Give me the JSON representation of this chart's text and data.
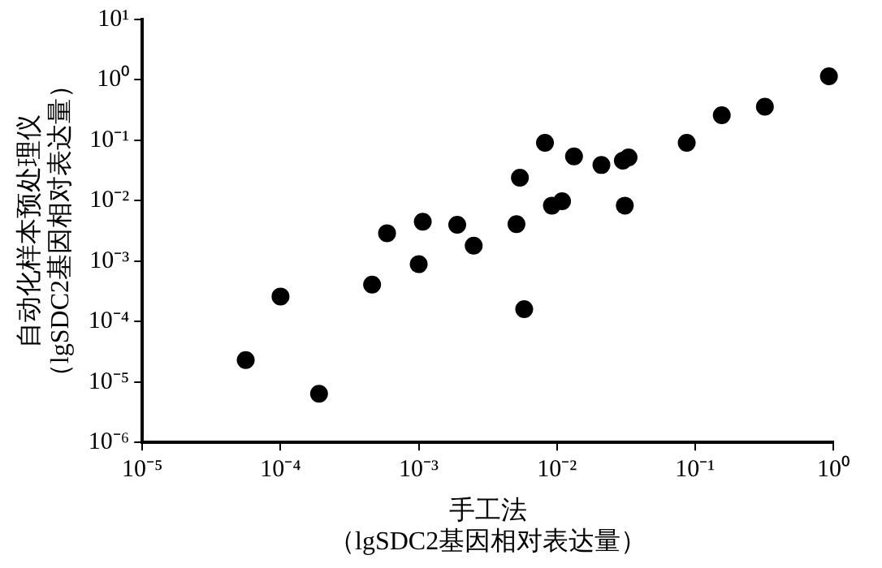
{
  "chart_data": {
    "type": "scatter",
    "xlabel": "手工法（lgSDC2基因相对表达量）",
    "ylabel": "自动化样本预处理仪（lgSDC2基因相对表达量）",
    "x": [
      5.6e-05,
      0.0001,
      0.00019,
      0.00046,
      0.00059,
      0.001,
      0.00107,
      0.0019,
      0.0025,
      0.0051,
      0.0054,
      0.0058,
      0.0082,
      0.0092,
      0.0109,
      0.0133,
      0.021,
      0.03,
      0.033,
      0.031,
      0.087,
      0.156,
      0.32,
      0.93
    ],
    "values": [
      2.3e-05,
      0.00026,
      6.4e-06,
      0.00041,
      0.0029,
      0.00089,
      0.0045,
      0.004,
      0.0018,
      0.0041,
      0.024,
      0.00016,
      0.091,
      0.0083,
      0.0098,
      0.054,
      0.039,
      0.046,
      0.052,
      0.0083,
      0.091,
      0.26,
      0.36,
      1.15
    ],
    "color": "#000000",
    "marker": "circle",
    "log": "xy",
    "grid": false,
    "legend": false,
    "xlim": [
      1e-05,
      1
    ],
    "xticks": [
      {
        "value": 1e-05,
        "label": "10⁻⁵"
      },
      {
        "value": 0.0001,
        "label": "10⁻⁴"
      },
      {
        "value": 0.001,
        "label": "10⁻³"
      },
      {
        "value": 0.01,
        "label": "10⁻²"
      },
      {
        "value": 0.1,
        "label": "10⁻¹"
      },
      {
        "value": 1,
        "label": "10⁰"
      }
    ],
    "ylim": [
      1e-06,
      10
    ],
    "yticks": [
      {
        "value": 1e-06,
        "label": "10⁻⁶"
      },
      {
        "value": 1e-05,
        "label": "10⁻⁵"
      },
      {
        "value": 0.0001,
        "label": "10⁻⁴"
      },
      {
        "value": 0.001,
        "label": "10⁻³"
      },
      {
        "value": 0.01,
        "label": "10⁻²"
      },
      {
        "value": 0.1,
        "label": "10⁻¹"
      },
      {
        "value": 1,
        "label": "10⁰"
      },
      {
        "value": 10,
        "label": "10¹"
      }
    ]
  }
}
